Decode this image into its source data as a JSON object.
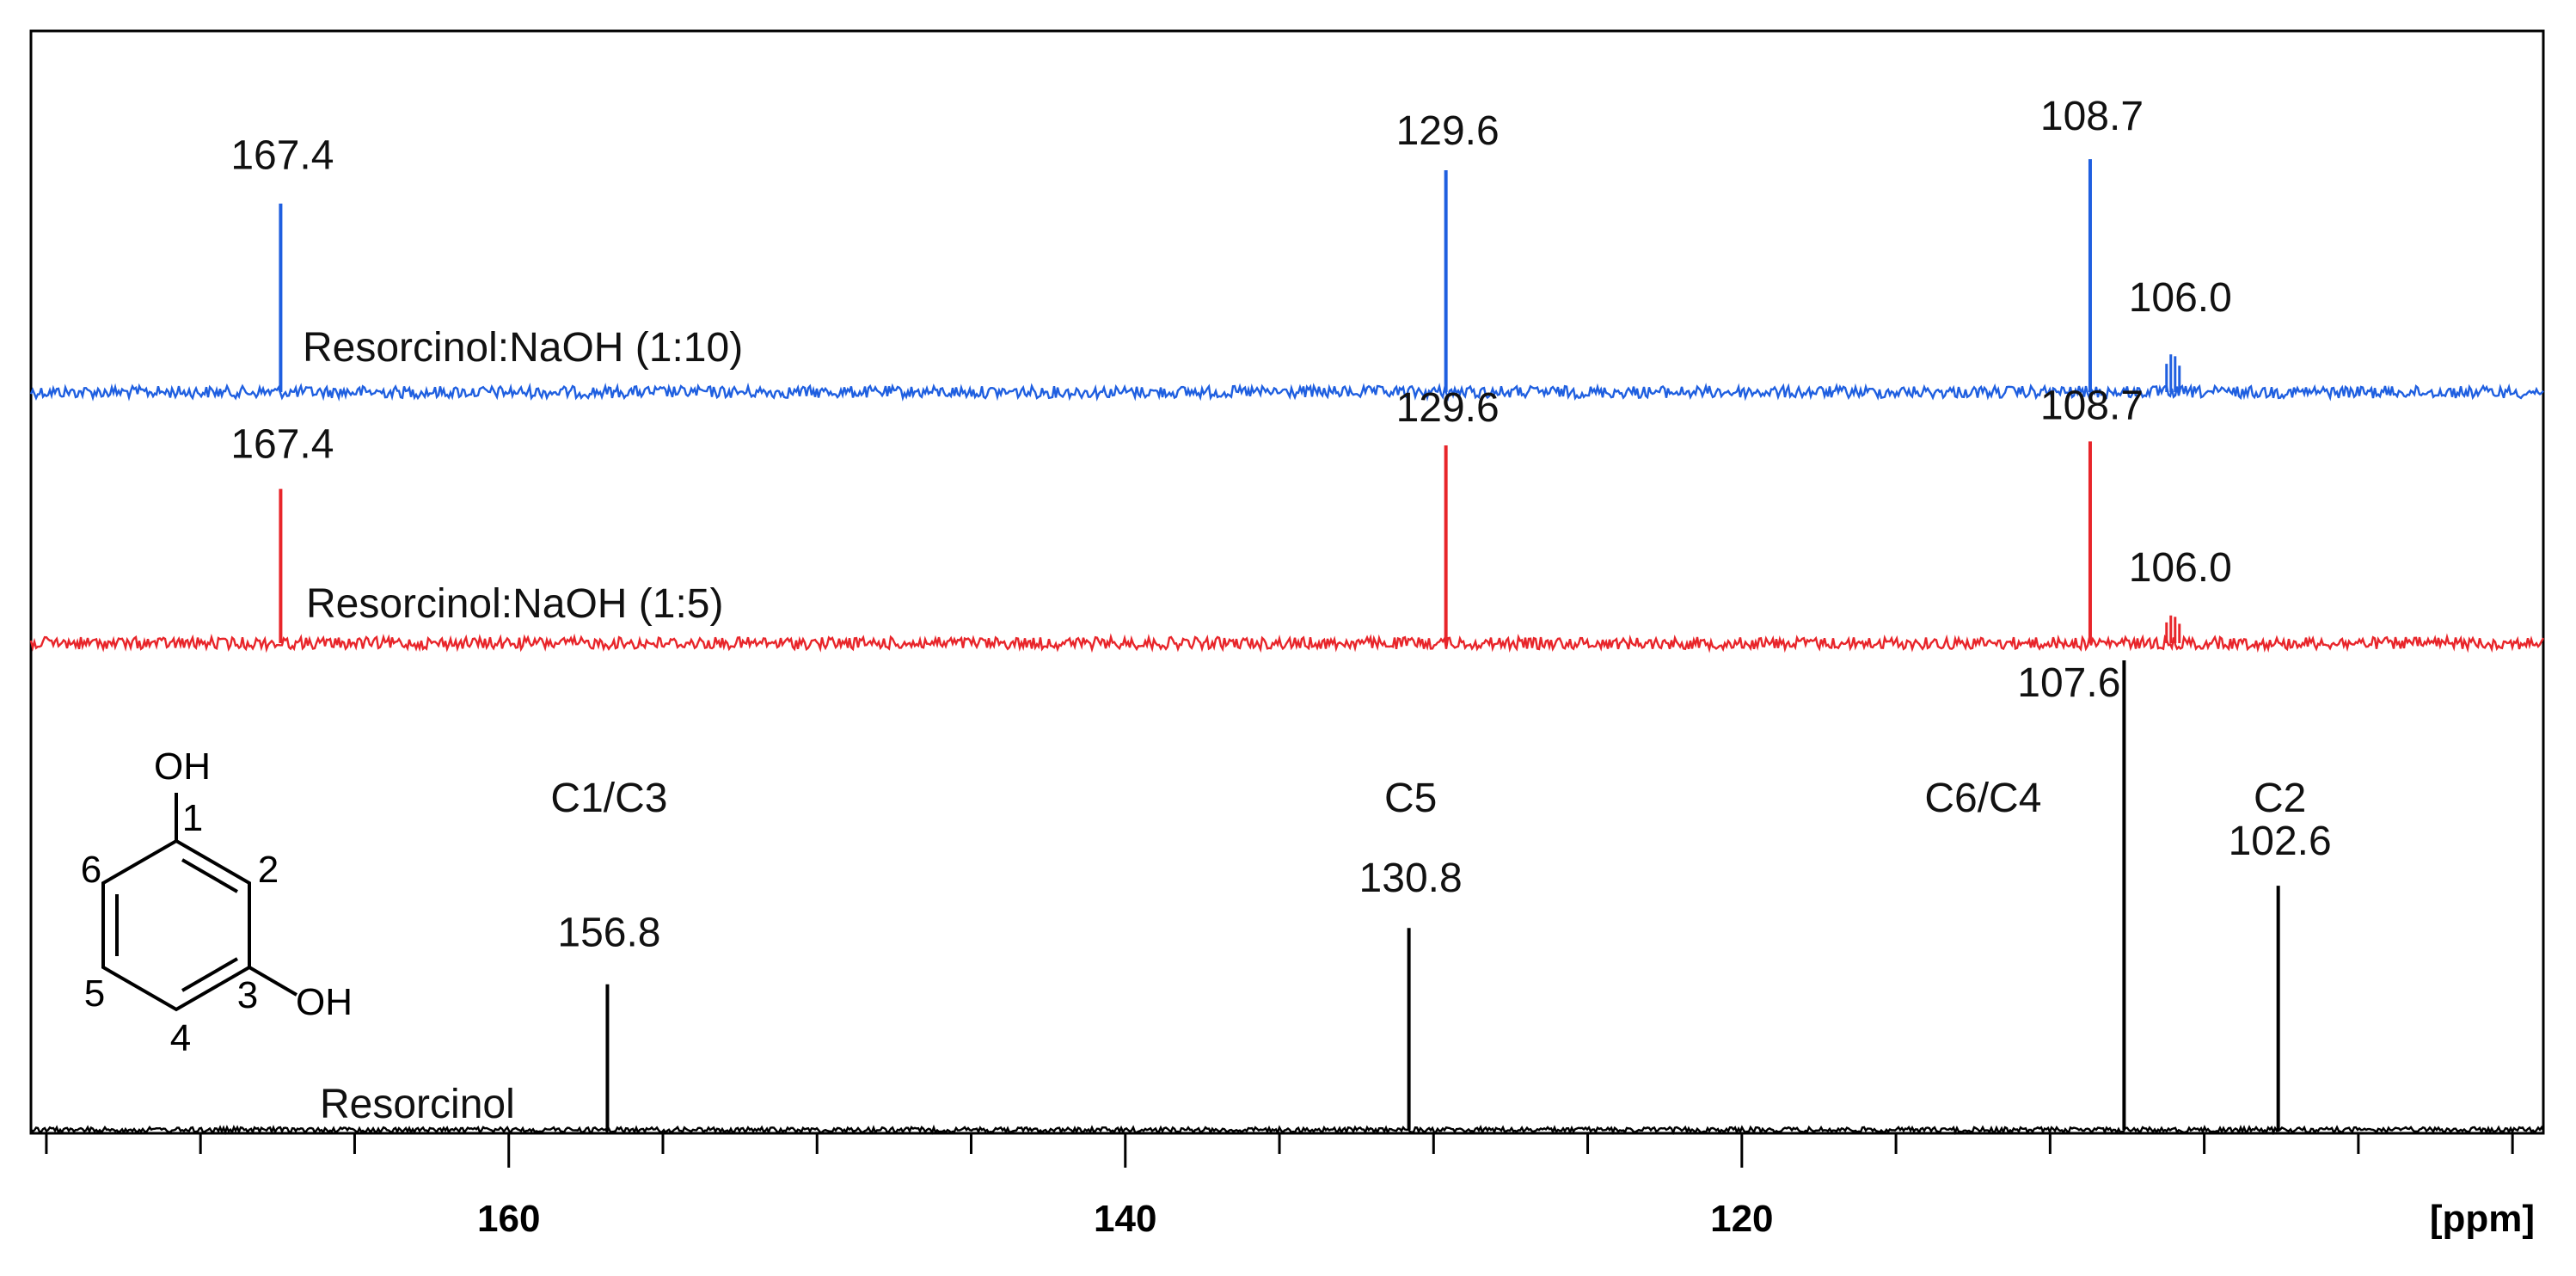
{
  "chart_data": {
    "type": "line",
    "xlabel": "[ppm]",
    "xlim": [
      175.5,
      94
    ],
    "x_direction": "reversed",
    "x_ticks_major": [
      160,
      140,
      120
    ],
    "x_ticks_minor_step": 5,
    "grid": false,
    "series": [
      {
        "name": "Resorcinol:NaOH (1:10)",
        "color": "#1f5fe0",
        "peaks": [
          {
            "ppm": 167.4,
            "height": 0.85,
            "label": "167.4"
          },
          {
            "ppm": 129.6,
            "height": 1.0,
            "label": "129.6"
          },
          {
            "ppm": 108.7,
            "height": 1.05,
            "label": "108.7"
          },
          {
            "ppm": 106.0,
            "height": 0.17,
            "label": "106.0",
            "multiplet": true
          }
        ]
      },
      {
        "name": "Resorcinol:NaOH (1:5)",
        "color": "#e8252a",
        "peaks": [
          {
            "ppm": 167.4,
            "height": 0.78,
            "label": "167.4"
          },
          {
            "ppm": 129.6,
            "height": 1.0,
            "label": "129.6"
          },
          {
            "ppm": 108.7,
            "height": 1.02,
            "label": "108.7"
          },
          {
            "ppm": 106.0,
            "height": 0.14,
            "label": "106.0",
            "multiplet": true
          }
        ]
      },
      {
        "name": "Resorcinol",
        "color": "#000000",
        "peaks": [
          {
            "ppm": 156.8,
            "height": 0.31,
            "label": "156.8",
            "assignment": "C1/C3"
          },
          {
            "ppm": 130.8,
            "height": 0.43,
            "label": "130.8",
            "assignment": "C5"
          },
          {
            "ppm": 107.6,
            "height": 1.0,
            "label": "107.6",
            "assignment": "C6/C4"
          },
          {
            "ppm": 102.6,
            "height": 0.52,
            "label": "102.6",
            "assignment": "C2"
          }
        ]
      }
    ]
  },
  "molecule": {
    "name": "resorcinol",
    "oh_top": "OH",
    "oh_right": "OH",
    "atom_numbers": [
      "1",
      "2",
      "3",
      "4",
      "5",
      "6"
    ]
  }
}
